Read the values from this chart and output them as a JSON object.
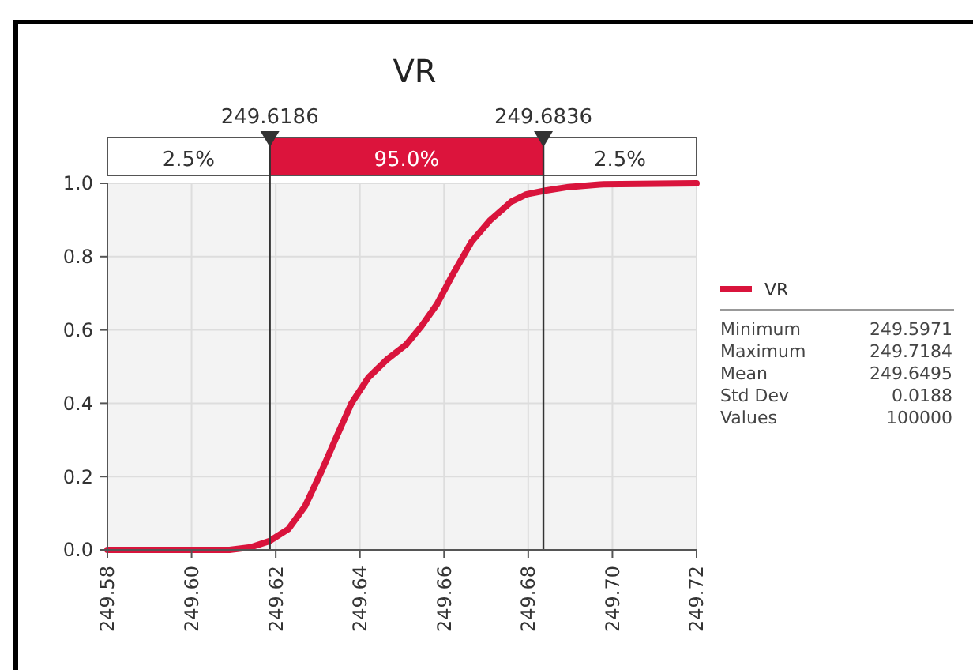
{
  "chart_data": {
    "type": "line",
    "title": "VR",
    "x": [
      249.58,
      249.609,
      249.614,
      249.6185,
      249.623,
      249.627,
      249.6307,
      249.6345,
      249.638,
      249.642,
      249.6465,
      249.651,
      249.6546,
      249.6583,
      249.662,
      249.6665,
      249.671,
      249.676,
      249.6796,
      249.684,
      249.6896,
      249.697,
      249.72
    ],
    "series": [
      {
        "name": "VR",
        "color": "#d9143c",
        "values": [
          0,
          0,
          0.007,
          0.024,
          0.057,
          0.12,
          0.21,
          0.31,
          0.4,
          0.47,
          0.52,
          0.56,
          0.61,
          0.67,
          0.75,
          0.84,
          0.9,
          0.95,
          0.97,
          0.98,
          0.99,
          0.997,
          1.0
        ]
      }
    ],
    "xlim": [
      249.58,
      249.72
    ],
    "xticks": [
      {
        "value": 249.58,
        "label": "249.58"
      },
      {
        "value": 249.6,
        "label": "249.60"
      },
      {
        "value": 249.62,
        "label": "249.62"
      },
      {
        "value": 249.64,
        "label": "249.64"
      },
      {
        "value": 249.66,
        "label": "249.66"
      },
      {
        "value": 249.68,
        "label": "249.68"
      },
      {
        "value": 249.7,
        "label": "249.70"
      },
      {
        "value": 249.72,
        "label": "249.72"
      }
    ],
    "ylim": [
      0,
      1
    ],
    "yticks": [
      {
        "value": 0,
        "label": "0.0"
      },
      {
        "value": 0.2,
        "label": "0.2"
      },
      {
        "value": 0.4,
        "label": "0.4"
      },
      {
        "value": 0.6,
        "label": "0.6"
      },
      {
        "value": 0.8,
        "label": "0.8"
      },
      {
        "value": 1,
        "label": "1.0"
      }
    ],
    "ref_lines": [
      {
        "axis": "x",
        "value": 249.6186,
        "label": "249.6186",
        "color": "#333333"
      },
      {
        "axis": "x",
        "value": 249.6836,
        "label": "249.6836",
        "color": "#333333"
      }
    ],
    "annotations": [
      "2.5%",
      "95.0%",
      "2.5%",
      "Minimum 249.5971",
      "Maximum 249.7184",
      "Mean 249.6495",
      "Std Dev 0.0188",
      "Values 100000"
    ],
    "grid": true,
    "legend": "right",
    "marker": "none",
    "line_style": "solid"
  }
}
